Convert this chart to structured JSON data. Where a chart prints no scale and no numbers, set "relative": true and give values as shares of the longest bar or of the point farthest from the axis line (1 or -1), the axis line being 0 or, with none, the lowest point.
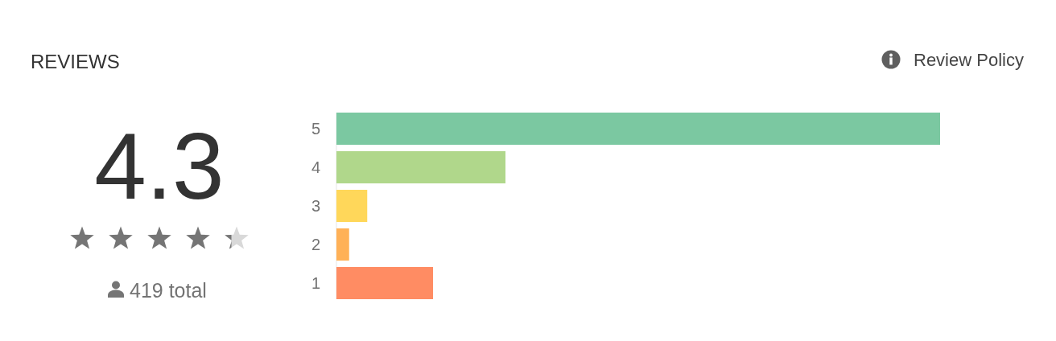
{
  "chart_data": {
    "type": "bar",
    "orientation": "horizontal",
    "relative": true,
    "title": "REVIEWS",
    "categories": [
      "5",
      "4",
      "3",
      "2",
      "1"
    ],
    "values": [
      1,
      0.28,
      0.051,
      0.021,
      0.16
    ],
    "colors": [
      "#7bc8a1",
      "#b0d78b",
      "#ffd75a",
      "#ffb157",
      "#ff8c63"
    ],
    "annotations": [
      "4.3",
      "419 total",
      "Review Policy"
    ]
  }
}
